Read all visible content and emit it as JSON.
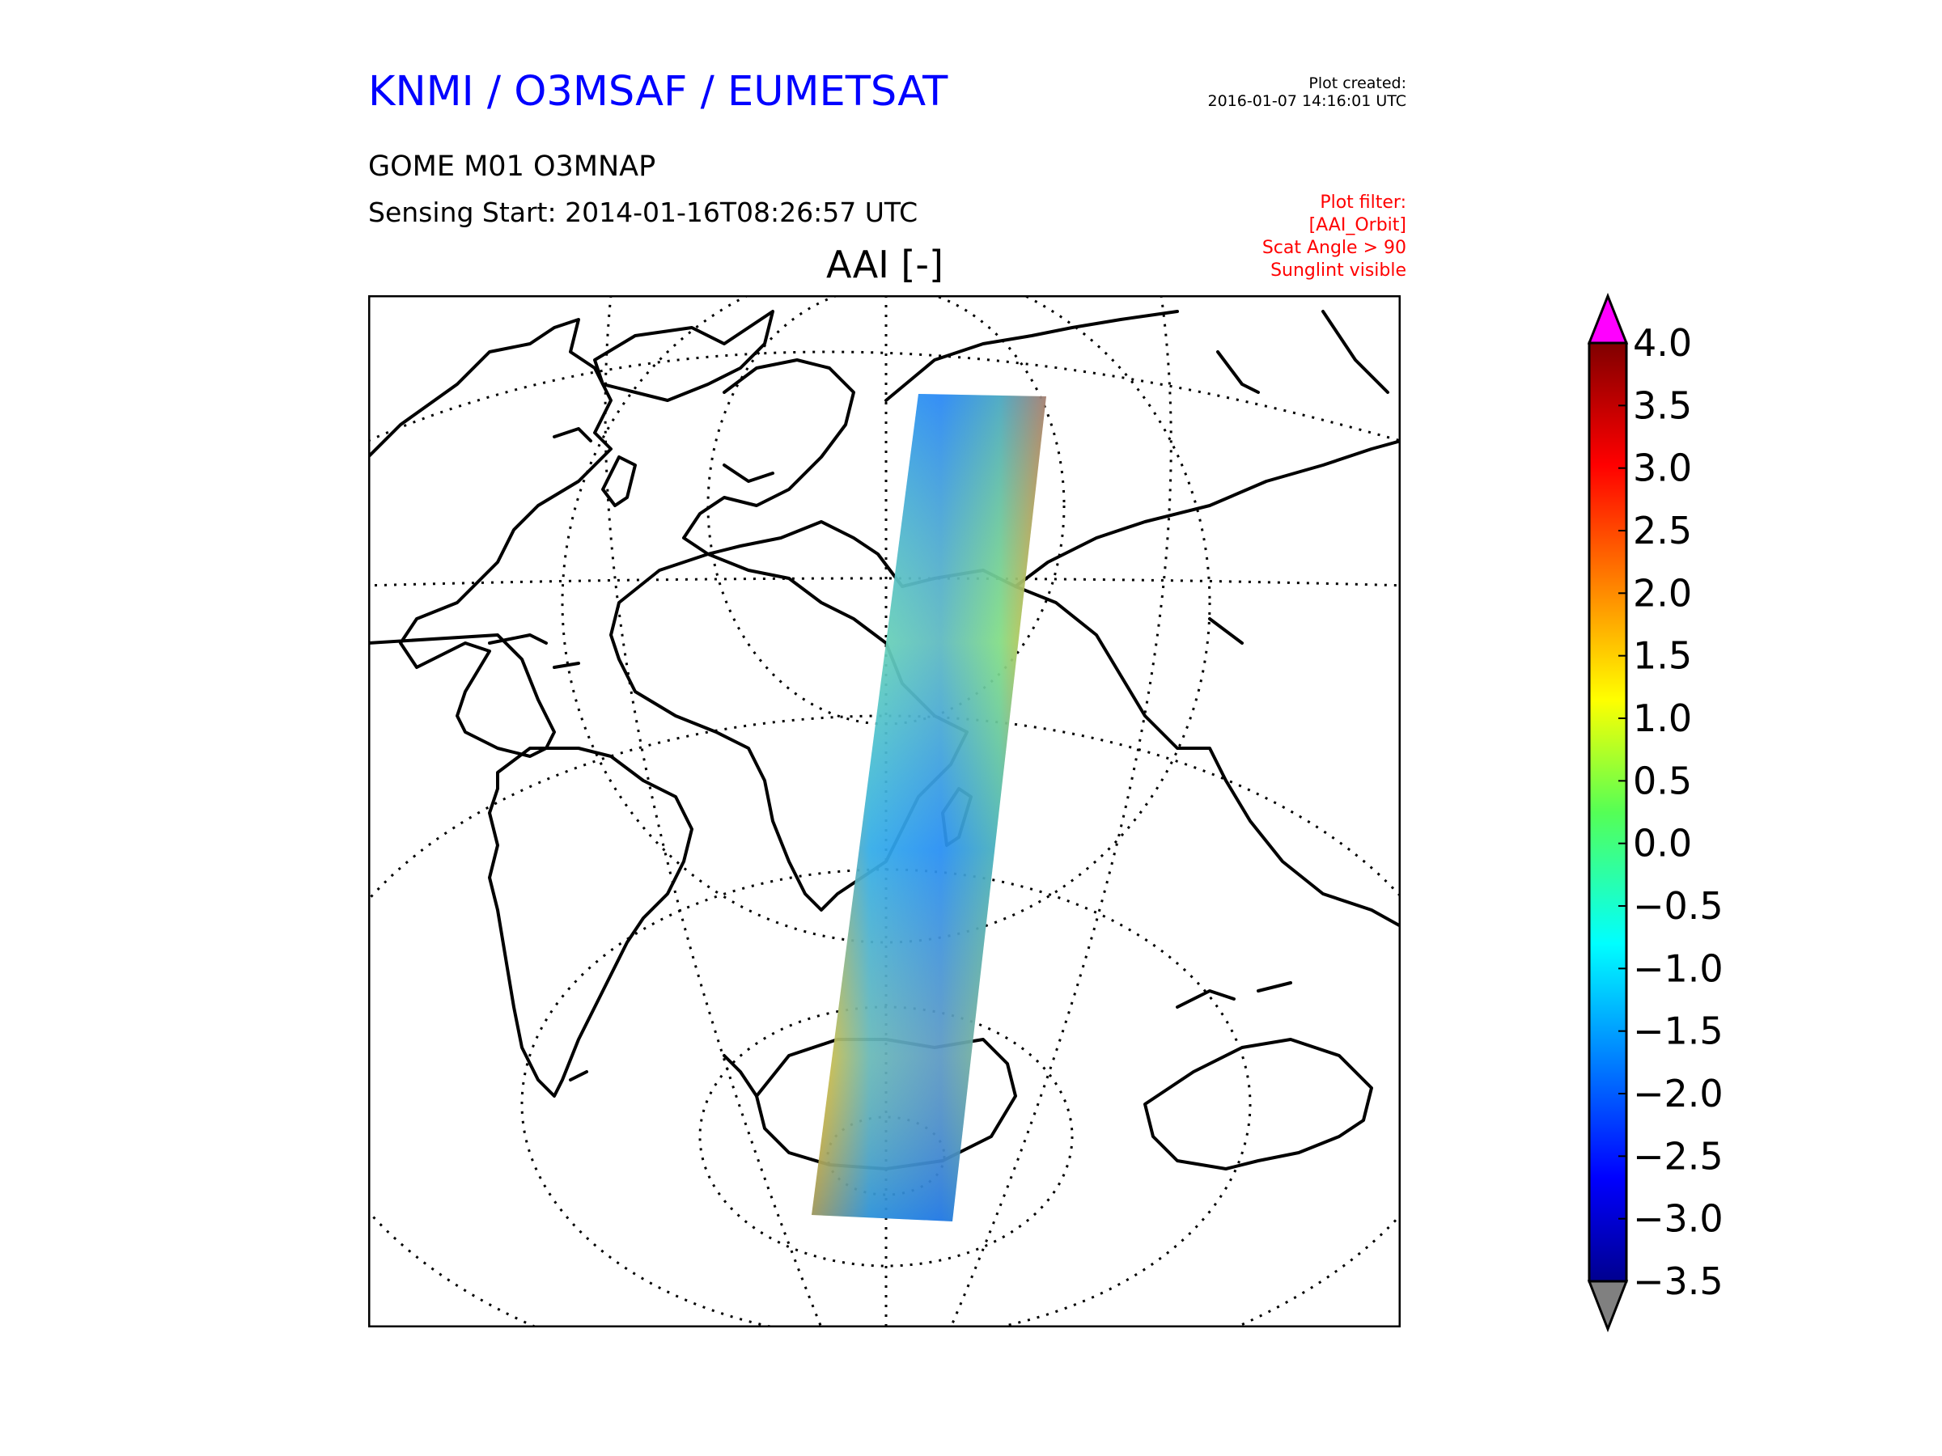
{
  "header": {
    "org_title": "KNMI / O3MSAF / EUMETSAT",
    "created_label": "Plot created:",
    "created_date": "2016-01-07 14:16:01 UTC",
    "product": "GOME M01 O3MNAP",
    "sensing": "Sensing Start: 2014-01-16T08:26:57 UTC"
  },
  "filter": {
    "title": "Plot filter:",
    "lines": [
      "[AAI_Orbit]",
      "Scat Angle > 90",
      "Sunglint visible"
    ]
  },
  "map": {
    "variable_title": "AAI [-]",
    "projection": "orthographic",
    "graticule": "dotted",
    "data": "GOME AAI orbit swath",
    "coastline_color": "#000000"
  },
  "colorbar": {
    "min": -3.5,
    "max": 4.0,
    "ticks": [
      "4.0",
      "3.5",
      "3.0",
      "2.5",
      "2.0",
      "1.5",
      "1.0",
      "0.5",
      "0.0",
      "−0.5",
      "−1.0",
      "−1.5",
      "−2.0",
      "−2.5",
      "−3.0",
      "−3.5"
    ],
    "colormap": "jet",
    "over_color": "#ff00ff",
    "under_color": "#808080"
  }
}
